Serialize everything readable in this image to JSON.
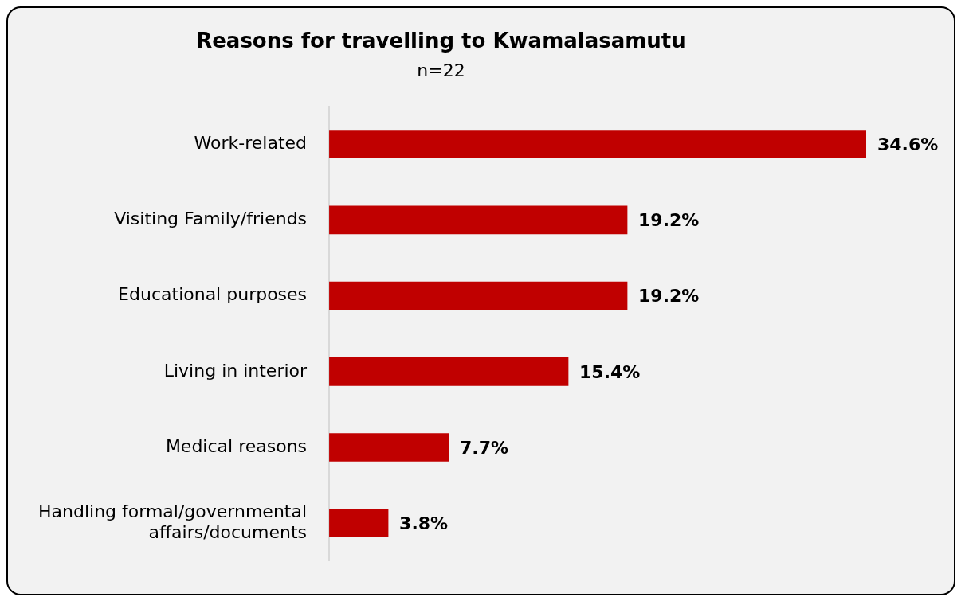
{
  "chart_data": {
    "type": "bar",
    "orientation": "horizontal",
    "title": "Reasons for travelling to Kwamalasamutu",
    "subtitle": "n=22",
    "categories": [
      "Work-related",
      "Visiting Family/friends",
      "Educational purposes",
      "Living in interior",
      "Medical reasons",
      "Handling formal/governmental affairs/documents"
    ],
    "values": [
      34.6,
      19.2,
      19.2,
      15.4,
      7.7,
      3.8
    ],
    "value_labels": [
      "34.6%",
      "19.2%",
      "19.2%",
      "15.4%",
      "7.7%",
      "3.8%"
    ],
    "color": "#c00000",
    "grid": false,
    "legend": false
  }
}
